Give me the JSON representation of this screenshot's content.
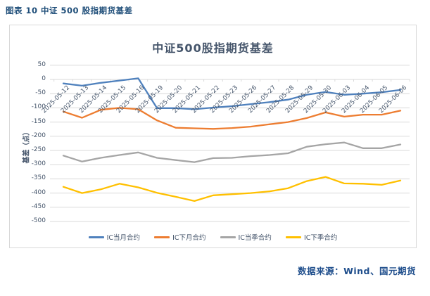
{
  "page": {
    "header": "图表 10 中证 500 股指期货基差",
    "footer": "数据来源：Wind、国元期货"
  },
  "colors": {
    "header_text": "#1F4E79",
    "footer_text": "#1F4E8C",
    "title_text": "#44546A",
    "axis_text": "#44546A",
    "grid": "#D9D9D9",
    "border": "#D9D9D9"
  },
  "chart_data": {
    "type": "line",
    "title": "中证500股指期货基差",
    "xlabel": "",
    "ylabel": "基差（点）",
    "ylim": [
      -500,
      50
    ],
    "yticks": [
      50,
      0,
      -50,
      -100,
      -150,
      -200,
      -250,
      -300,
      -350,
      -400,
      -450,
      -500
    ],
    "grid": true,
    "legend_position": "bottom",
    "x_label_rotation": 45,
    "categories": [
      "2025-05-12",
      "2025-05-13",
      "2025-05-14",
      "2025-05-15",
      "2025-05-16",
      "2025-05-19",
      "2025-05-20",
      "2025-05-21",
      "2025-05-22",
      "2025-05-23",
      "2025-05-26",
      "2025-05-27",
      "2025-05-28",
      "2025-05-29",
      "2025-05-30",
      "2025-06-03",
      "2025-06-04",
      "2025-06-05",
      "2025-06-06"
    ],
    "series": [
      {
        "name": "IC当月合约",
        "color": "#4F81BD",
        "values": [
          -14,
          -22,
          -12,
          -4,
          4,
          -101,
          -101,
          -105,
          -99,
          -94,
          -87,
          -80,
          -71,
          -54,
          -44,
          -54,
          -50,
          -45,
          -37
        ]
      },
      {
        "name": "IC下月合约",
        "color": "#ED7D31",
        "values": [
          -113,
          -135,
          -107,
          -100,
          -105,
          -144,
          -170,
          -172,
          -174,
          -171,
          -166,
          -158,
          -150,
          -136,
          -116,
          -131,
          -124,
          -124,
          -110
        ]
      },
      {
        "name": "IC当季合约",
        "color": "#A5A5A5",
        "values": [
          -268,
          -289,
          -276,
          -266,
          -257,
          -276,
          -284,
          -291,
          -277,
          -276,
          -270,
          -266,
          -260,
          -237,
          -228,
          -222,
          -242,
          -242,
          -229
        ]
      },
      {
        "name": "IC下季合约",
        "color": "#FFC000",
        "values": [
          -378,
          -400,
          -387,
          -367,
          -380,
          -399,
          -413,
          -428,
          -408,
          -404,
          -400,
          -394,
          -383,
          -358,
          -343,
          -366,
          -367,
          -371,
          -356
        ]
      }
    ]
  }
}
